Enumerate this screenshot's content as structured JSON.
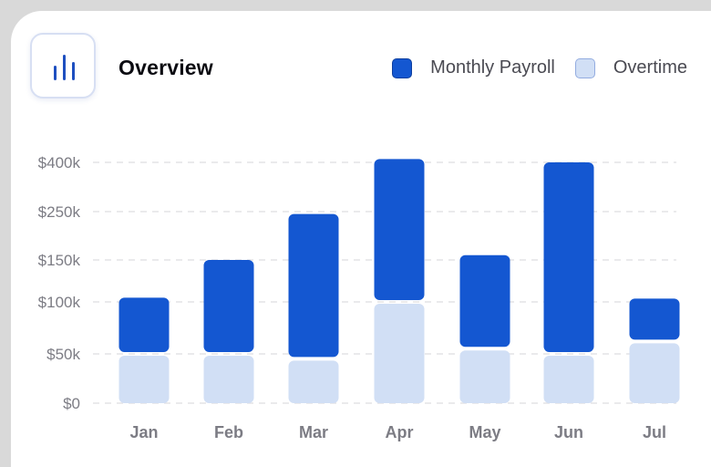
{
  "header": {
    "title": "Overview",
    "icon": "bar-chart-icon"
  },
  "colors": {
    "payroll": "#1457d1",
    "overtime": "#d1dff5",
    "overtime_border": "#93ace0",
    "grid": "#e3e3e6"
  },
  "chart_data": {
    "type": "bar",
    "stacked": true,
    "categories": [
      "Jan",
      "Feb",
      "Mar",
      "Apr",
      "May",
      "Jun",
      "Jul"
    ],
    "series": [
      {
        "name": "Overtime",
        "values": [
          50,
          50,
          45,
          100,
          55,
          50,
          62
        ]
      },
      {
        "name": "Monthly Payroll",
        "values": [
          55,
          100,
          200,
          310,
          105,
          350,
          42
        ]
      }
    ],
    "y_ticks": [
      {
        "value": 0,
        "label": "$0"
      },
      {
        "value": 50,
        "label": "$50k"
      },
      {
        "value": 100,
        "label": "$100k"
      },
      {
        "value": 150,
        "label": "$150k"
      },
      {
        "value": 250,
        "label": "$250k"
      },
      {
        "value": 400,
        "label": "$400k"
      }
    ],
    "y_scale": "piecewise-linear",
    "grid": true,
    "legend_position": "top-right"
  }
}
